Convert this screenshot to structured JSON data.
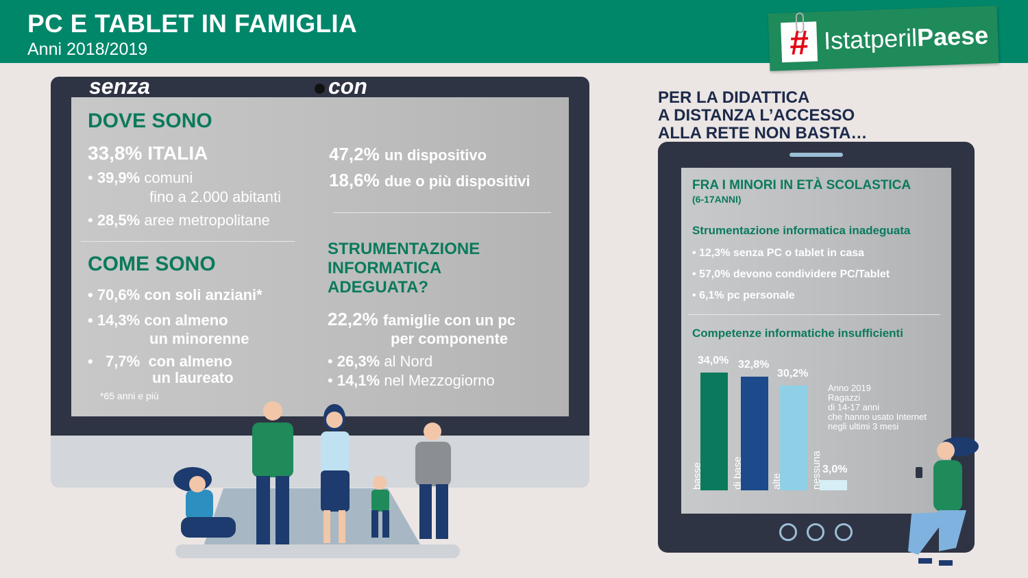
{
  "header": {
    "title": "PC E TABLET IN FAMIGLIA",
    "subtitle": "Anni 2018/2019",
    "logo": {
      "hash": "#",
      "text_regular": "Istatperil",
      "text_bold": "Paese"
    }
  },
  "monitor": {
    "label_senza": "senza",
    "label_con": "con",
    "dove_sono": {
      "title": "DOVE SONO",
      "italia_value": "33,8%",
      "italia_label": "ITALIA",
      "items": [
        {
          "bullet": "•",
          "value": "39,9%",
          "text": "comuni",
          "text2": "fino a 2.000 abitanti"
        },
        {
          "bullet": "•",
          "value": "28,5%",
          "text": "aree metropolitane"
        }
      ]
    },
    "come_sono": {
      "title": "COME SONO",
      "items": [
        {
          "bullet": "•",
          "value": "70,6%",
          "text": "con soli anziani*"
        },
        {
          "bullet": "•",
          "value": "14,3%",
          "text": "con almeno",
          "text2": "un minorenne"
        },
        {
          "bullet": "•",
          "value": "7,7%",
          "text": "con almeno",
          "text2": "un laureato"
        }
      ],
      "footnote": "*65 anni e più"
    },
    "con_items": [
      {
        "value": "47,2%",
        "text": "un dispositivo"
      },
      {
        "value": "18,6%",
        "text": "due o più dispositivi"
      }
    ],
    "strumentazione": {
      "title_lines": [
        "STRUMENTAZIONE",
        "INFORMATICA",
        "ADEGUATA?"
      ],
      "value": "22,2%",
      "text": "famiglie con un pc",
      "text2": "per componente",
      "items": [
        {
          "bullet": "•",
          "value": "26,3%",
          "text": "al Nord"
        },
        {
          "bullet": "•",
          "value": "14,1%",
          "text": "nel Mezzogiorno"
        }
      ]
    }
  },
  "tablet": {
    "title_lines": [
      "PER LA DIDATTICA",
      "A DISTANZA L’ACCESSO",
      "ALLA RETE NON BASTA…"
    ],
    "heading": "FRA I MINORI IN ETÀ SCOLASTICA",
    "heading_sub": "(6-17ANNI)",
    "strum_title": "Strumentazione informatica inadeguata",
    "strum_items": [
      {
        "bullet": "•",
        "text": "12,3% senza PC o tablet in casa"
      },
      {
        "bullet": "•",
        "text": "57,0% devono condividere PC/Tablet"
      },
      {
        "bullet": "•",
        "text": "6,1% pc personale"
      }
    ],
    "comp_title": "Competenze informatiche insufficienti",
    "note_lines": [
      "Anno 2019",
      "Ragazzi",
      "di 14-17 anni",
      "che hanno usato Internet",
      "negli ultimi 3 mesi"
    ]
  },
  "chart_data": {
    "type": "bar",
    "categories": [
      "basse",
      "di base",
      "alte",
      "nessuna"
    ],
    "values": [
      34.0,
      32.8,
      30.2,
      3.0
    ],
    "value_labels": [
      "34,0%",
      "32,8%",
      "30,2%",
      "3,0%"
    ],
    "colors": [
      "#0b7a5c",
      "#1c4a8a",
      "#8fd0e6",
      "#d6eef5"
    ],
    "ylim": [
      0,
      34.0
    ]
  }
}
